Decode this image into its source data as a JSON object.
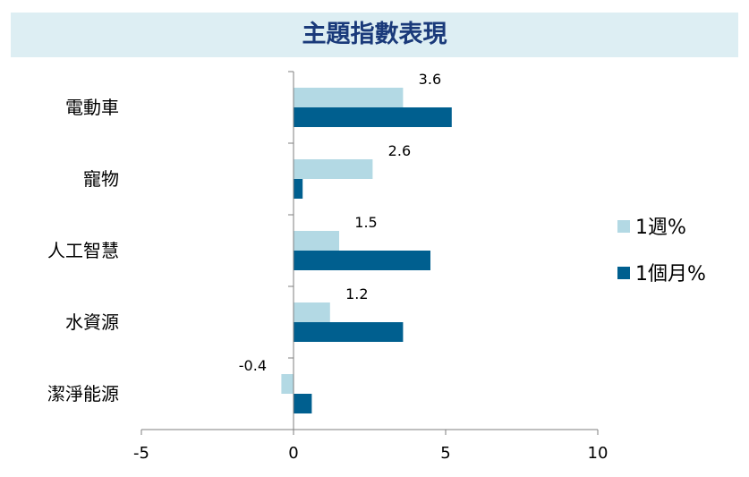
{
  "title": "主題指數表現",
  "colors": {
    "week": "#b3d9e4",
    "month": "#005f8f",
    "title_bg": "#ddeef3",
    "title_text": "#1a3a7a",
    "axis": "#7f7f7f"
  },
  "chart_data": {
    "type": "bar",
    "orientation": "horizontal",
    "title": "主題指數表現",
    "categories": [
      "電動車",
      "寵物",
      "人工智慧",
      "水資源",
      "潔淨能源"
    ],
    "series": [
      {
        "name": "1週%",
        "values": [
          3.6,
          2.6,
          1.5,
          1.2,
          -0.4
        ],
        "labels": [
          "3.6",
          "2.6",
          "1.5",
          "1.2",
          "-0.4"
        ]
      },
      {
        "name": "1個月%",
        "values": [
          5.2,
          0.3,
          4.5,
          3.6,
          0.6
        ]
      }
    ],
    "xlim": [
      -5,
      10
    ],
    "xticks": [
      "-5",
      "0",
      "5",
      "10"
    ],
    "grid": false,
    "legend_position": "right"
  }
}
